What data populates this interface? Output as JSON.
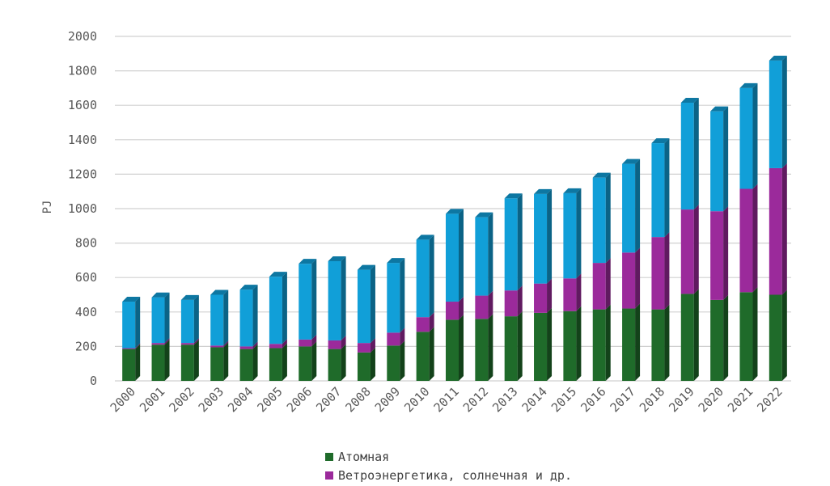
{
  "chart_data": {
    "type": "bar",
    "stacked": true,
    "style": "3d-columns",
    "title": "",
    "xlabel": "",
    "ylabel": "PJ",
    "ylim": [
      0,
      2000
    ],
    "yticks": [
      0,
      200,
      400,
      600,
      800,
      1000,
      1200,
      1400,
      1600,
      1800,
      2000
    ],
    "grid": true,
    "legend_position": "bottom",
    "categories": [
      "2000",
      "2001",
      "2002",
      "2003",
      "2004",
      "2005",
      "2006",
      "2007",
      "2008",
      "2009",
      "2010",
      "2011",
      "2012",
      "2013",
      "2014",
      "2015",
      "2016",
      "2017",
      "2018",
      "2019",
      "2020",
      "2021",
      "2022"
    ],
    "series": [
      {
        "name": "Атомная",
        "color": "#1f6b2a",
        "values": [
          185,
          210,
          210,
          195,
          185,
          190,
          200,
          185,
          165,
          205,
          285,
          355,
          360,
          375,
          395,
          405,
          415,
          420,
          415,
          505,
          470,
          515,
          500
        ]
      },
      {
        "name": "Ветроэнергетика, солнечная и др.",
        "color": "#9b2a9b",
        "values": [
          5,
          10,
          10,
          10,
          15,
          25,
          40,
          50,
          55,
          75,
          85,
          105,
          135,
          150,
          170,
          190,
          270,
          325,
          420,
          490,
          515,
          600,
          735
        ]
      },
      {
        "name": "",
        "color": "#119fd8",
        "values": [
          270,
          265,
          250,
          295,
          330,
          390,
          440,
          460,
          425,
          405,
          450,
          510,
          455,
          535,
          520,
          495,
          495,
          515,
          545,
          620,
          580,
          585,
          625
        ]
      }
    ]
  }
}
